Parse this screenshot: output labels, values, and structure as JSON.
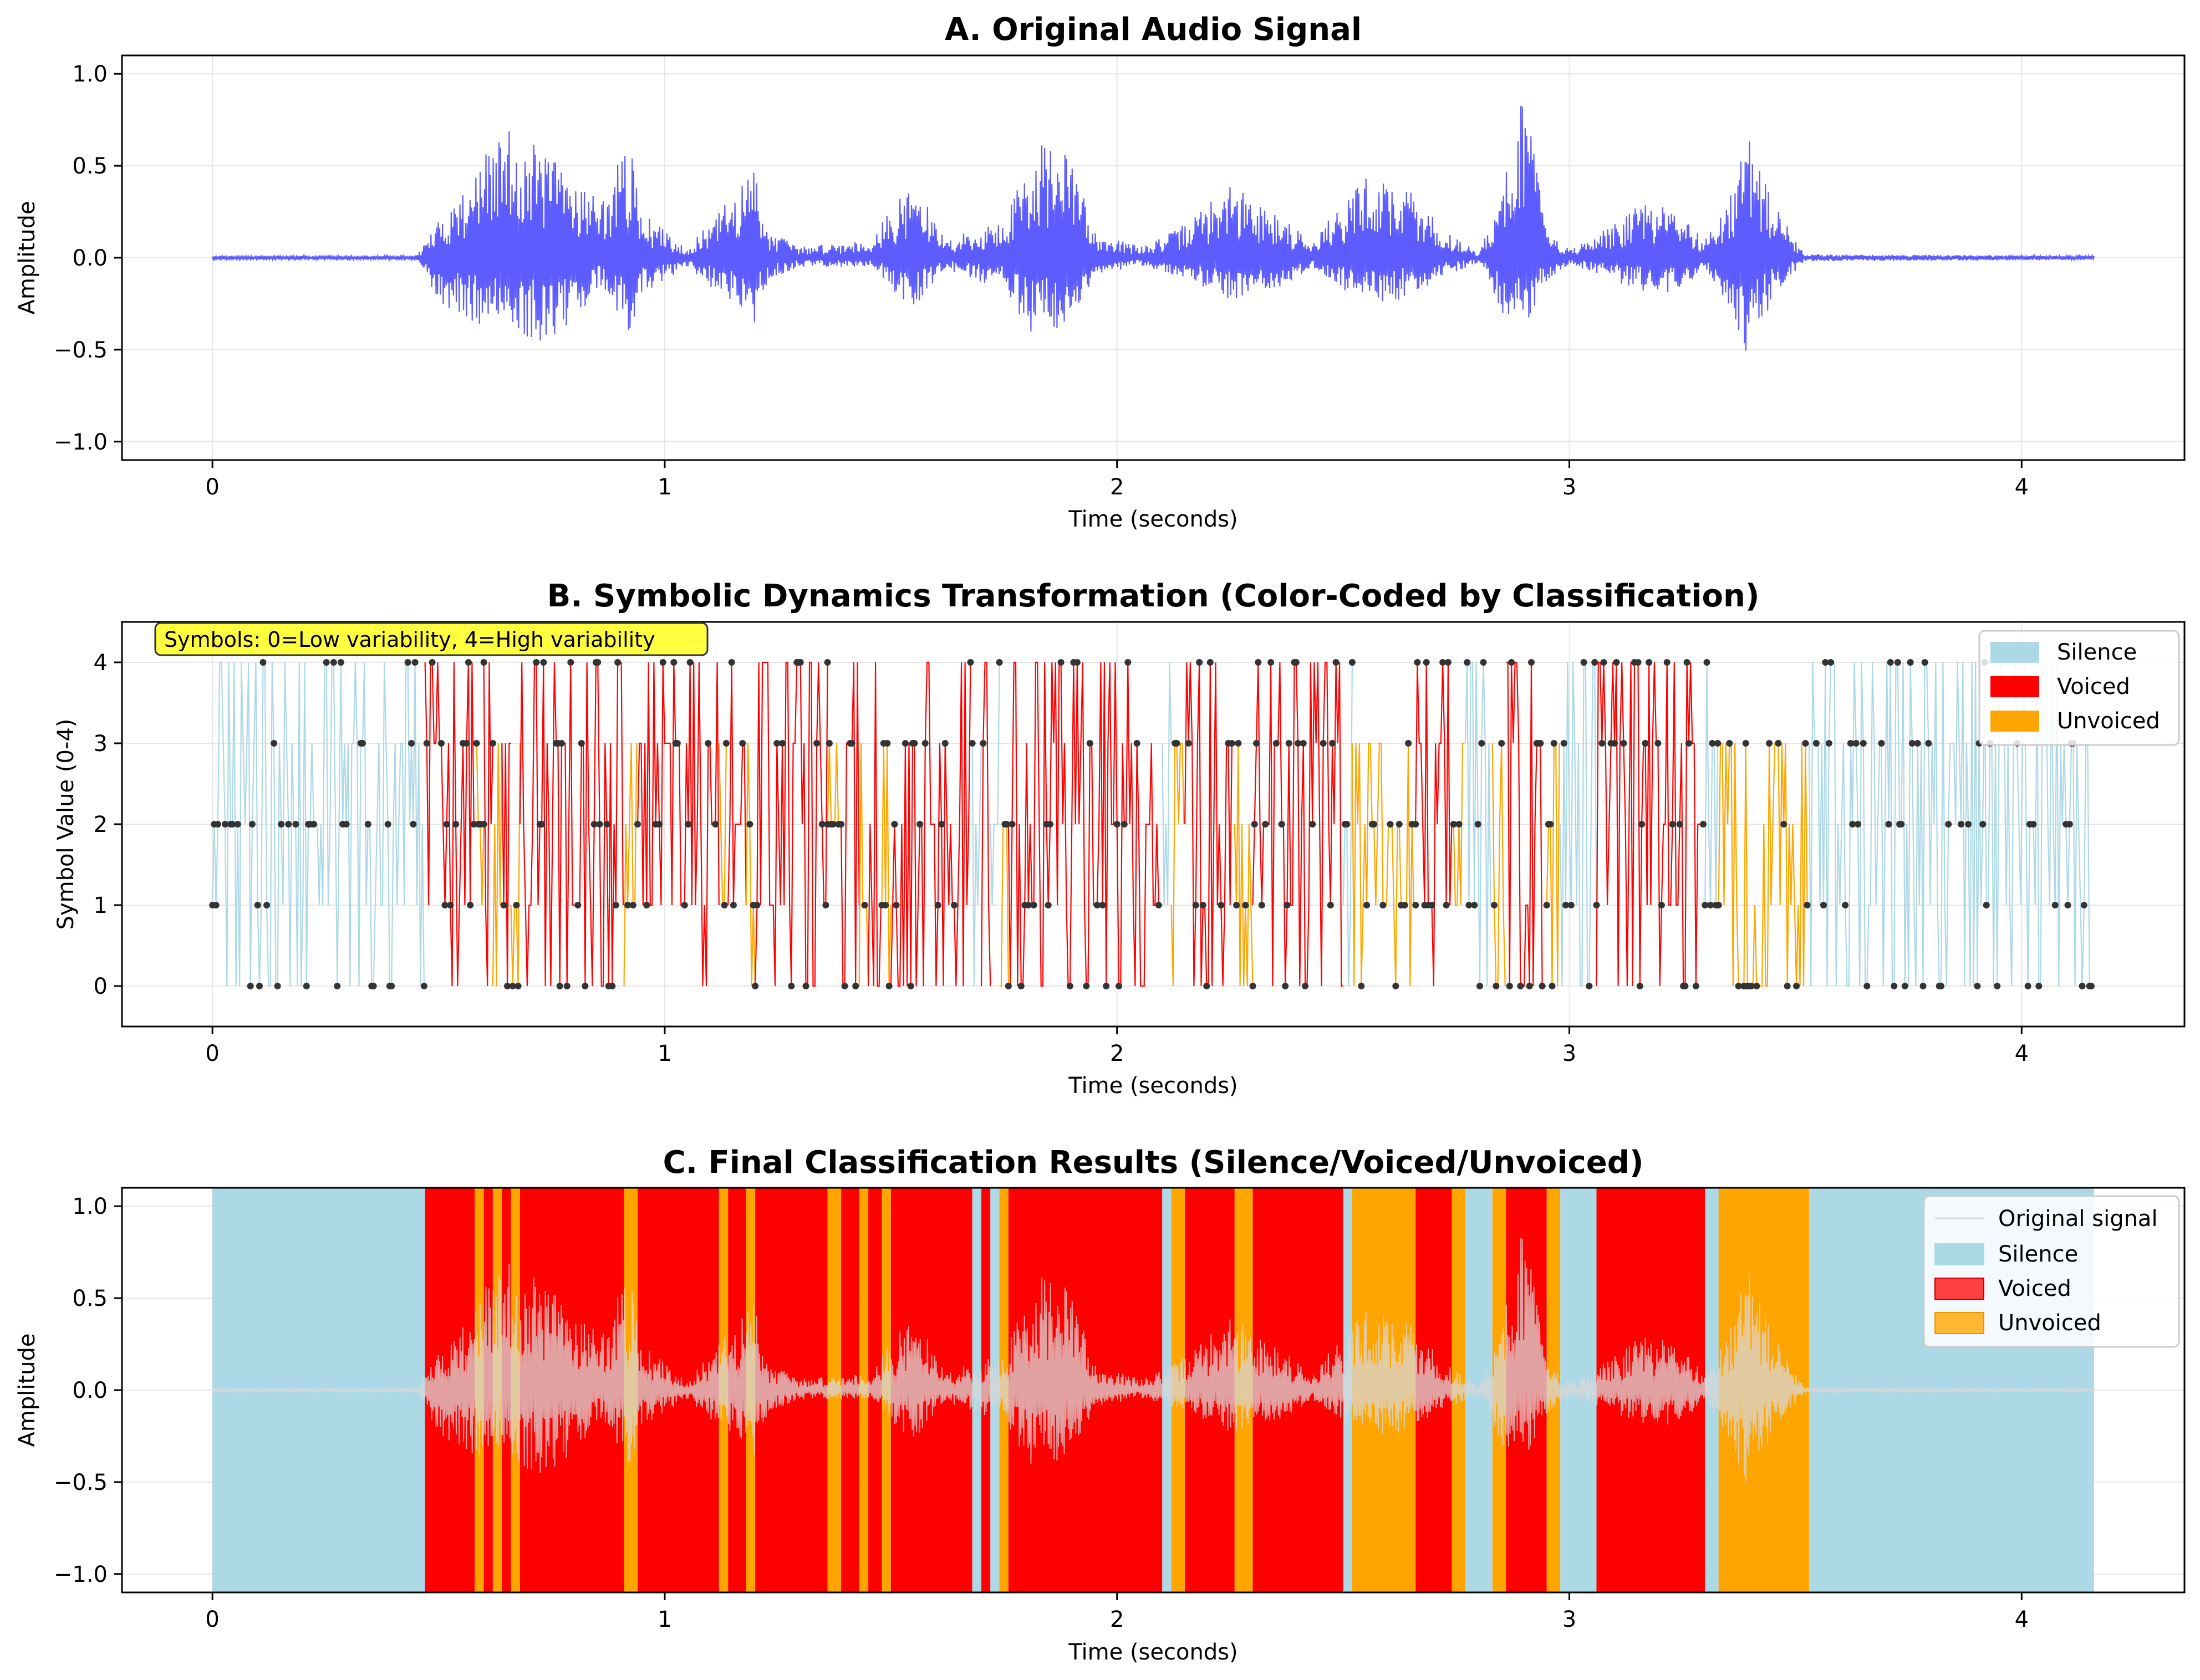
{
  "chart_data": [
    {
      "type": "line",
      "title": "A. Original Audio Signal",
      "xlabel": "Time (seconds)",
      "ylabel": "Amplitude",
      "xlim": [
        -0.2,
        4.36
      ],
      "ylim": [
        -1.1,
        1.1
      ],
      "xticks": [
        0,
        1,
        2,
        3,
        4
      ],
      "yticks": [
        -1.0,
        -0.5,
        0.0,
        0.5,
        1.0
      ],
      "xtick_labels": [
        "0",
        "1",
        "2",
        "3",
        "4"
      ],
      "ytick_labels": [
        "−1.0",
        "−0.5",
        "0.0",
        "0.5",
        "1.0"
      ],
      "grid": true,
      "series": [
        {
          "name": "",
          "color": "#4a4aff",
          "envelope": {
            "t": [
              0.0,
              0.45,
              0.5,
              0.65,
              0.75,
              0.83,
              0.86,
              0.92,
              0.95,
              1.05,
              1.12,
              1.2,
              1.23,
              1.3,
              1.45,
              1.55,
              1.62,
              1.75,
              1.82,
              1.9,
              1.95,
              2.05,
              2.13,
              2.25,
              2.35,
              2.43,
              2.55,
              2.65,
              2.72,
              2.8,
              2.85,
              2.9,
              2.95,
              3.0,
              3.05,
              3.15,
              3.22,
              3.3,
              3.35,
              3.4,
              3.45,
              3.52,
              4.16
            ],
            "top": [
              0.01,
              0.01,
              0.2,
              0.72,
              0.55,
              0.4,
              0.3,
              0.65,
              0.25,
              0.05,
              0.25,
              0.5,
              0.15,
              0.06,
              0.1,
              0.42,
              0.1,
              0.2,
              0.65,
              0.55,
              0.15,
              0.06,
              0.15,
              0.4,
              0.25,
              0.1,
              0.45,
              0.38,
              0.15,
              0.03,
              0.35,
              1.0,
              0.15,
              0.05,
              0.1,
              0.28,
              0.3,
              0.1,
              0.35,
              0.65,
              0.3,
              0.02,
              0.01
            ],
            "bottom": [
              -0.01,
              -0.01,
              -0.25,
              -0.45,
              -0.45,
              -0.25,
              -0.15,
              -0.45,
              -0.2,
              -0.05,
              -0.2,
              -0.38,
              -0.12,
              -0.05,
              -0.05,
              -0.28,
              -0.06,
              -0.18,
              -0.45,
              -0.35,
              -0.1,
              -0.04,
              -0.1,
              -0.25,
              -0.2,
              -0.06,
              -0.25,
              -0.22,
              -0.1,
              -0.03,
              -0.3,
              -0.45,
              -0.12,
              -0.04,
              -0.08,
              -0.18,
              -0.2,
              -0.08,
              -0.25,
              -0.58,
              -0.2,
              -0.02,
              -0.01
            ]
          }
        }
      ]
    },
    {
      "type": "line",
      "title": "B. Symbolic Dynamics Transformation (Color-Coded by Classification)",
      "xlabel": "Time (seconds)",
      "ylabel": "Symbol Value (0-4)",
      "xlim": [
        -0.2,
        4.36
      ],
      "ylim": [
        -0.5,
        4.5
      ],
      "xticks": [
        0,
        1,
        2,
        3,
        4
      ],
      "yticks": [
        0,
        1,
        2,
        3,
        4
      ],
      "xtick_labels": [
        "0",
        "1",
        "2",
        "3",
        "4"
      ],
      "ytick_labels": [
        "0",
        "1",
        "2",
        "3",
        "4"
      ],
      "grid": true,
      "annotation": "Symbols: 0=Low variability, 4=High variability",
      "annotation_color": "#ffff40",
      "legend": {
        "placement": "top-right",
        "entries": [
          {
            "label": "Silence",
            "color": "#add8e6"
          },
          {
            "label": "Voiced",
            "color": "#ff0000"
          },
          {
            "label": "Unvoiced",
            "color": "#ffa500"
          }
        ]
      },
      "symbol_range_by_class": {
        "Silence": [
          0,
          4
        ],
        "Voiced": [
          0,
          4
        ],
        "Unvoiced": [
          0,
          3
        ]
      }
    },
    {
      "type": "area",
      "title": "C. Final Classification Results (Silence/Voiced/Unvoiced)",
      "xlabel": "Time (seconds)",
      "ylabel": "Amplitude",
      "xlim": [
        -0.2,
        4.36
      ],
      "ylim": [
        -1.1,
        1.1
      ],
      "xticks": [
        0,
        1,
        2,
        3,
        4
      ],
      "yticks": [
        -1.0,
        -0.5,
        0.0,
        0.5,
        1.0
      ],
      "xtick_labels": [
        "0",
        "1",
        "2",
        "3",
        "4"
      ],
      "ytick_labels": [
        "−1.0",
        "−0.5",
        "0.0",
        "0.5",
        "1.0"
      ],
      "grid": true,
      "legend": {
        "placement": "top-right",
        "entries": [
          {
            "label": "Original signal",
            "color": "#d8d8d8"
          },
          {
            "label": "Silence",
            "color": "#add8e6"
          },
          {
            "label": "Voiced",
            "color": "#ff0000"
          },
          {
            "label": "Unvoiced",
            "color": "#ffa500"
          }
        ]
      },
      "segments": [
        {
          "start": 0.0,
          "end": 0.47,
          "class": "Silence"
        },
        {
          "start": 0.47,
          "end": 0.58,
          "class": "Voiced"
        },
        {
          "start": 0.58,
          "end": 0.6,
          "class": "Unvoiced"
        },
        {
          "start": 0.6,
          "end": 0.62,
          "class": "Voiced"
        },
        {
          "start": 0.62,
          "end": 0.64,
          "class": "Unvoiced"
        },
        {
          "start": 0.64,
          "end": 0.66,
          "class": "Voiced"
        },
        {
          "start": 0.66,
          "end": 0.68,
          "class": "Unvoiced"
        },
        {
          "start": 0.68,
          "end": 0.91,
          "class": "Voiced"
        },
        {
          "start": 0.91,
          "end": 0.94,
          "class": "Unvoiced"
        },
        {
          "start": 0.94,
          "end": 1.12,
          "class": "Voiced"
        },
        {
          "start": 1.12,
          "end": 1.14,
          "class": "Unvoiced"
        },
        {
          "start": 1.14,
          "end": 1.18,
          "class": "Voiced"
        },
        {
          "start": 1.18,
          "end": 1.2,
          "class": "Unvoiced"
        },
        {
          "start": 1.2,
          "end": 1.36,
          "class": "Voiced"
        },
        {
          "start": 1.36,
          "end": 1.39,
          "class": "Unvoiced"
        },
        {
          "start": 1.39,
          "end": 1.43,
          "class": "Voiced"
        },
        {
          "start": 1.43,
          "end": 1.45,
          "class": "Unvoiced"
        },
        {
          "start": 1.45,
          "end": 1.48,
          "class": "Voiced"
        },
        {
          "start": 1.48,
          "end": 1.5,
          "class": "Unvoiced"
        },
        {
          "start": 1.5,
          "end": 1.68,
          "class": "Voiced"
        },
        {
          "start": 1.68,
          "end": 1.7,
          "class": "Silence"
        },
        {
          "start": 1.7,
          "end": 1.72,
          "class": "Voiced"
        },
        {
          "start": 1.72,
          "end": 1.74,
          "class": "Silence"
        },
        {
          "start": 1.74,
          "end": 1.76,
          "class": "Unvoiced"
        },
        {
          "start": 1.76,
          "end": 2.1,
          "class": "Voiced"
        },
        {
          "start": 2.1,
          "end": 2.12,
          "class": "Silence"
        },
        {
          "start": 2.12,
          "end": 2.15,
          "class": "Unvoiced"
        },
        {
          "start": 2.15,
          "end": 2.26,
          "class": "Voiced"
        },
        {
          "start": 2.26,
          "end": 2.3,
          "class": "Unvoiced"
        },
        {
          "start": 2.3,
          "end": 2.5,
          "class": "Voiced"
        },
        {
          "start": 2.5,
          "end": 2.52,
          "class": "Silence"
        },
        {
          "start": 2.52,
          "end": 2.66,
          "class": "Unvoiced"
        },
        {
          "start": 2.66,
          "end": 2.74,
          "class": "Voiced"
        },
        {
          "start": 2.74,
          "end": 2.77,
          "class": "Unvoiced"
        },
        {
          "start": 2.77,
          "end": 2.83,
          "class": "Silence"
        },
        {
          "start": 2.83,
          "end": 2.86,
          "class": "Unvoiced"
        },
        {
          "start": 2.86,
          "end": 2.95,
          "class": "Voiced"
        },
        {
          "start": 2.95,
          "end": 2.98,
          "class": "Unvoiced"
        },
        {
          "start": 2.98,
          "end": 3.06,
          "class": "Silence"
        },
        {
          "start": 3.06,
          "end": 3.3,
          "class": "Voiced"
        },
        {
          "start": 3.3,
          "end": 3.33,
          "class": "Silence"
        },
        {
          "start": 3.33,
          "end": 3.53,
          "class": "Unvoiced"
        },
        {
          "start": 3.53,
          "end": 4.16,
          "class": "Silence"
        }
      ]
    }
  ]
}
